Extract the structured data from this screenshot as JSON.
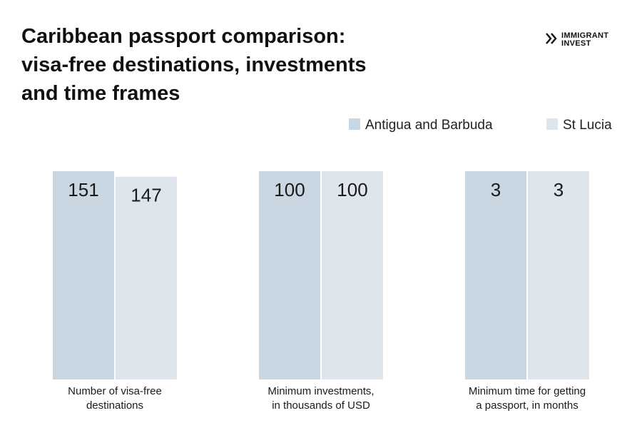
{
  "chart_data": {
    "type": "bar",
    "title": [
      "Caribbean passport comparison:",
      "visa-free destinations, investments",
      "and time frames"
    ],
    "logo": [
      "IMMIGRANT",
      "INVEST"
    ],
    "categories": [
      "Number of visa-free\ndestinations",
      "Minimum investments,\nin thousands of USD",
      "Minimum time for getting\na passport, in months"
    ],
    "series": [
      {
        "name": "Antigua and Barbuda",
        "color": "#c9d7e2",
        "values": [
          151,
          100,
          3
        ]
      },
      {
        "name": "St Lucia",
        "color": "#dfe5ec",
        "values": [
          147,
          100,
          3
        ]
      }
    ]
  }
}
